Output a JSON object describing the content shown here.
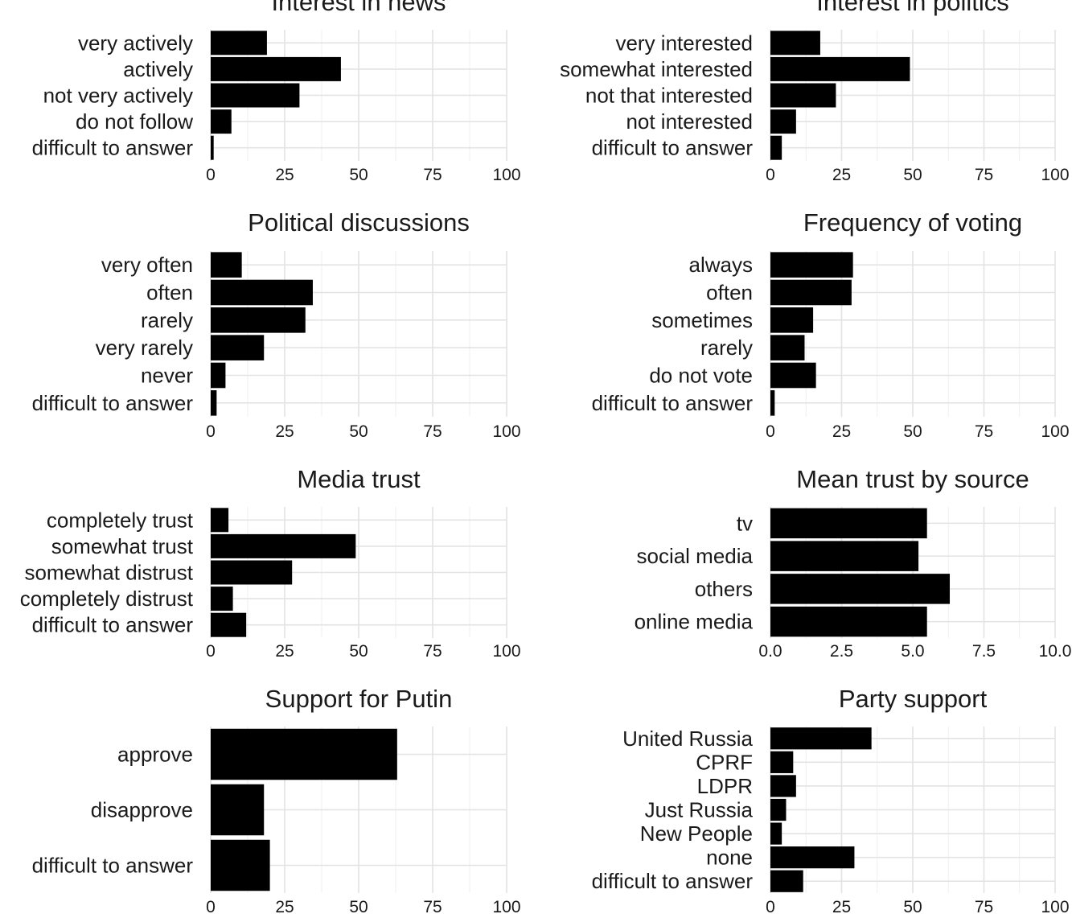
{
  "chart_data": [
    {
      "type": "bar",
      "orientation": "horizontal",
      "title": "Interest in news",
      "categories": [
        "very actively",
        "actively",
        "not very actively",
        "do not follow",
        "difficult to answer"
      ],
      "values": [
        19,
        44,
        30,
        7,
        1
      ],
      "xlim": [
        0,
        100
      ],
      "xticks": [
        "0",
        "25",
        "50",
        "75",
        "100"
      ],
      "grid": true,
      "bar_color": "#000000"
    },
    {
      "type": "bar",
      "orientation": "horizontal",
      "title": "Interest in politics",
      "categories": [
        "very interested",
        "somewhat interested",
        "not that interested",
        "not interested",
        "difficult to answer"
      ],
      "values": [
        17.5,
        49,
        23,
        9,
        4
      ],
      "xlim": [
        0,
        100
      ],
      "xticks": [
        "0",
        "25",
        "50",
        "75",
        "100"
      ],
      "grid": true,
      "bar_color": "#000000"
    },
    {
      "type": "bar",
      "orientation": "horizontal",
      "title": "Political discussions",
      "categories": [
        "very often",
        "often",
        "rarely",
        "very rarely",
        "never",
        "difficult to answer"
      ],
      "values": [
        10.5,
        34.5,
        32,
        18,
        5,
        2
      ],
      "xlim": [
        0,
        100
      ],
      "xticks": [
        "0",
        "25",
        "50",
        "75",
        "100"
      ],
      "grid": true,
      "bar_color": "#000000"
    },
    {
      "type": "bar",
      "orientation": "horizontal",
      "title": "Frequency of voting",
      "categories": [
        "always",
        "often",
        "sometimes",
        "rarely",
        "do not vote",
        "difficult to answer"
      ],
      "values": [
        29,
        28.5,
        15,
        12,
        16,
        1.5
      ],
      "xlim": [
        0,
        100
      ],
      "xticks": [
        "0",
        "25",
        "50",
        "75",
        "100"
      ],
      "grid": true,
      "bar_color": "#000000"
    },
    {
      "type": "bar",
      "orientation": "horizontal",
      "title": "Media trust",
      "categories": [
        "completely trust",
        "somewhat trust",
        "somewhat distrust",
        "completely distrust",
        "difficult to answer"
      ],
      "values": [
        6,
        49,
        27.5,
        7.5,
        12
      ],
      "xlim": [
        0,
        100
      ],
      "xticks": [
        "0",
        "25",
        "50",
        "75",
        "100"
      ],
      "grid": true,
      "bar_color": "#000000"
    },
    {
      "type": "bar",
      "orientation": "horizontal",
      "title": "Mean trust by source",
      "categories": [
        "tv",
        "social media",
        "others",
        "online media"
      ],
      "values": [
        5.5,
        5.2,
        6.3,
        5.5
      ],
      "xlim": [
        0,
        10
      ],
      "xticks": [
        "0.0",
        "2.5",
        "5.0",
        "7.5",
        "10.0"
      ],
      "grid": true,
      "bar_color": "#000000"
    },
    {
      "type": "bar",
      "orientation": "horizontal",
      "title": "Support for Putin",
      "categories": [
        "approve",
        "disapprove",
        "difficult to answer"
      ],
      "values": [
        63,
        18,
        20
      ],
      "xlim": [
        0,
        100
      ],
      "xticks": [
        "0",
        "25",
        "50",
        "75",
        "100"
      ],
      "grid": true,
      "bar_color": "#000000"
    },
    {
      "type": "bar",
      "orientation": "horizontal",
      "title": "Party support",
      "categories": [
        "United Russia",
        "CPRF",
        "LDPR",
        "Just Russia",
        "New People",
        "none",
        "difficult to answer"
      ],
      "values": [
        35.5,
        8,
        9,
        5.5,
        4,
        29.5,
        11.5
      ],
      "xlim": [
        0,
        100
      ],
      "xticks": [
        "0",
        "25",
        "50",
        "75",
        "100"
      ],
      "grid": true,
      "bar_color": "#000000"
    }
  ]
}
